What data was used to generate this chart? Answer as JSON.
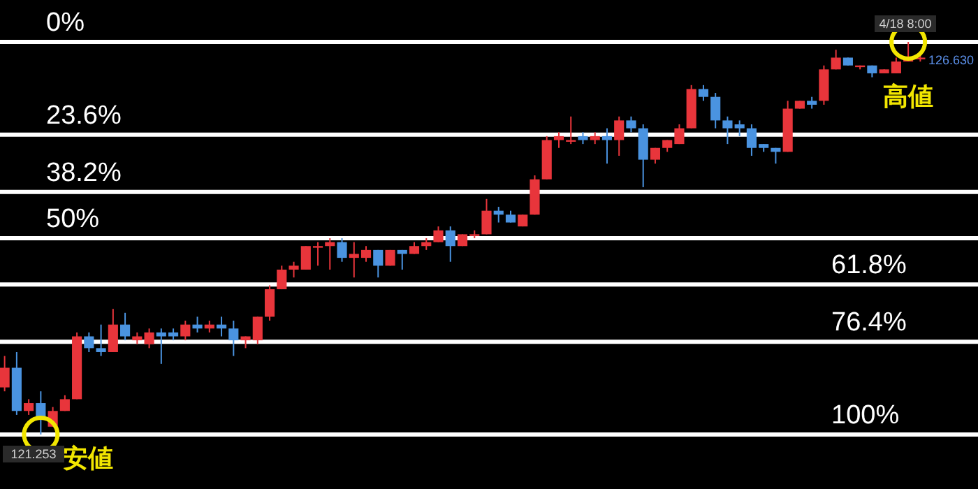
{
  "chart_data": {
    "type": "candlestick",
    "ylim": [
      100,
      0
    ],
    "categories": [
      null,
      null,
      null,
      null,
      null,
      null,
      null,
      null,
      null,
      null,
      null,
      null,
      null,
      null,
      null,
      null,
      null,
      null,
      null,
      null,
      null,
      null,
      null,
      null,
      null,
      null,
      null,
      null,
      null,
      null,
      null,
      null,
      null,
      null,
      null,
      null,
      null,
      null,
      null,
      null,
      null,
      null,
      null,
      null,
      null,
      null,
      null,
      null,
      null,
      null,
      null,
      null,
      null,
      null,
      null,
      null,
      null,
      null,
      null,
      null,
      null,
      null,
      null,
      null,
      null,
      null,
      null,
      null,
      null,
      null,
      null,
      null,
      null,
      null,
      null,
      null,
      null
    ],
    "ohlc": [
      [
        88,
        89,
        80,
        83
      ],
      [
        83,
        95,
        79,
        94
      ],
      [
        94,
        95,
        91,
        92
      ],
      [
        92,
        100,
        89,
        96
      ],
      [
        98,
        98,
        93,
        94
      ],
      [
        94,
        94,
        90,
        91
      ],
      [
        91,
        91,
        74,
        75
      ],
      [
        75,
        79,
        74,
        78
      ],
      [
        78,
        80,
        72,
        79
      ],
      [
        79,
        79,
        68,
        72
      ],
      [
        72,
        76,
        69,
        75
      ],
      [
        76,
        77,
        74,
        75
      ],
      [
        77,
        78,
        73,
        74
      ],
      [
        74,
        82,
        73,
        75
      ],
      [
        74,
        76,
        73,
        75
      ],
      [
        75,
        76,
        71,
        72
      ],
      [
        72,
        74,
        70,
        73
      ],
      [
        73,
        74,
        71,
        72
      ],
      [
        72,
        75,
        70,
        73
      ],
      [
        73,
        80,
        71,
        76
      ],
      [
        76,
        78,
        75,
        75
      ],
      [
        76,
        77,
        70,
        70
      ],
      [
        70,
        71,
        62,
        63
      ],
      [
        63,
        63,
        57,
        58
      ],
      [
        58,
        60,
        56,
        57
      ],
      [
        58,
        58,
        52,
        52
      ],
      [
        52,
        57,
        51,
        52
      ],
      [
        52,
        58,
        50,
        51
      ],
      [
        51,
        56,
        50,
        55
      ],
      [
        55,
        60,
        51,
        54
      ],
      [
        55,
        56,
        52,
        53
      ],
      [
        53,
        60,
        53,
        57
      ],
      [
        57,
        57,
        53,
        53
      ],
      [
        53,
        58,
        53,
        54
      ],
      [
        54,
        54,
        51,
        52
      ],
      [
        52,
        53,
        50,
        51
      ],
      [
        51,
        51,
        47,
        48
      ],
      [
        48,
        56,
        47,
        52
      ],
      [
        52,
        52,
        49,
        49
      ],
      [
        49,
        50,
        48,
        49
      ],
      [
        49,
        49,
        40,
        43
      ],
      [
        43,
        46,
        42,
        44
      ],
      [
        44,
        46,
        43,
        46
      ],
      [
        47,
        47,
        44,
        44
      ],
      [
        44,
        44,
        34,
        35
      ],
      [
        35,
        35,
        24,
        25
      ],
      [
        25,
        27,
        23,
        24
      ],
      [
        25,
        26,
        19,
        25
      ],
      [
        24,
        26,
        23,
        25
      ],
      [
        25,
        26,
        23,
        24
      ],
      [
        24,
        31,
        22,
        25
      ],
      [
        25,
        29,
        19,
        20
      ],
      [
        20,
        23,
        19,
        22
      ],
      [
        22,
        37,
        21,
        30
      ],
      [
        30,
        31,
        27,
        27
      ],
      [
        27,
        28,
        25,
        25
      ],
      [
        26,
        26,
        21,
        22
      ],
      [
        22,
        22,
        11,
        12
      ],
      [
        12,
        15,
        11,
        14
      ],
      [
        14,
        22,
        13,
        20
      ],
      [
        20,
        26,
        19,
        22
      ],
      [
        21,
        24,
        20,
        22
      ],
      [
        22,
        29,
        21,
        27
      ],
      [
        26,
        28,
        26,
        27
      ],
      [
        27,
        31,
        27,
        28
      ],
      [
        28,
        28,
        15,
        17
      ],
      [
        17,
        17,
        15,
        15
      ],
      [
        15,
        17,
        14,
        16
      ],
      [
        15,
        16,
        6,
        7
      ],
      [
        7,
        7,
        2,
        4
      ],
      [
        4,
        6,
        4,
        6
      ],
      [
        6,
        7,
        6,
        6
      ],
      [
        6,
        9,
        6,
        8
      ],
      [
        8,
        8,
        7,
        7
      ],
      [
        8,
        8,
        4,
        5
      ],
      [
        5,
        5,
        0,
        4
      ],
      [
        4,
        5,
        3,
        4
      ]
    ],
    "colors": [
      "#e8353b",
      "#4a93e0",
      "#e8353b",
      "#4a93e0",
      "#e8353b",
      "#e8353b",
      "#e8353b",
      "#4a93e0",
      "#4a93e0",
      "#e8353b",
      "#4a93e0",
      "#e8353b",
      "#e8353b",
      "#4a93e0",
      "#4a93e0",
      "#e8353b",
      "#4a93e0",
      "#e8353b",
      "#4a93e0",
      "#4a93e0",
      "#e8353b",
      "#e8353b",
      "#e8353b",
      "#e8353b",
      "#e8353b",
      "#e8353b",
      "#e8353b",
      "#e8353b",
      "#4a93e0",
      "#e8353b",
      "#e8353b",
      "#4a93e0",
      "#e8353b",
      "#4a93e0",
      "#e8353b",
      "#e8353b",
      "#e8353b",
      "#4a93e0",
      "#e8353b",
      "#e8353b",
      "#e8353b",
      "#4a93e0",
      "#4a93e0",
      "#e8353b",
      "#e8353b",
      "#e8353b",
      "#e8353b",
      "#e8353b",
      "#4a93e0",
      "#e8353b",
      "#4a93e0",
      "#e8353b",
      "#4a93e0",
      "#4a93e0",
      "#e8353b",
      "#e8353b",
      "#e8353b",
      "#e8353b",
      "#4a93e0",
      "#4a93e0",
      "#4a93e0",
      "#4a93e0",
      "#4a93e0",
      "#4a93e0",
      "#4a93e0",
      "#e8353b",
      "#e8353b",
      "#4a93e0",
      "#e8353b",
      "#e8353b",
      "#4a93e0",
      "#e8353b",
      "#4a93e0",
      "#e8353b",
      "#e8353b",
      "#e8353b",
      "#e8353b"
    ],
    "ref_lines": [
      {
        "axis": "y",
        "value": 0,
        "label": "0%",
        "color": "#ffffff"
      },
      {
        "axis": "y",
        "value": 23.6,
        "label": "23.6%",
        "color": "#ffffff"
      },
      {
        "axis": "y",
        "value": 38.2,
        "label": "38.2%",
        "color": "#ffffff"
      },
      {
        "axis": "y",
        "value": 50,
        "label": "50%",
        "color": "#ffffff"
      },
      {
        "axis": "y",
        "value": 61.8,
        "label": "61.8%",
        "color": "#ffffff"
      },
      {
        "axis": "y",
        "value": 76.4,
        "label": "76.4%",
        "color": "#ffffff"
      },
      {
        "axis": "y",
        "value": 100,
        "label": "100%",
        "color": "#ffffff"
      }
    ],
    "annotations": [
      {
        "text": "高値",
        "y": 0
      },
      {
        "text": "安値",
        "y": 100
      },
      "4/18 8:00",
      "121.253",
      "126.630"
    ]
  }
}
